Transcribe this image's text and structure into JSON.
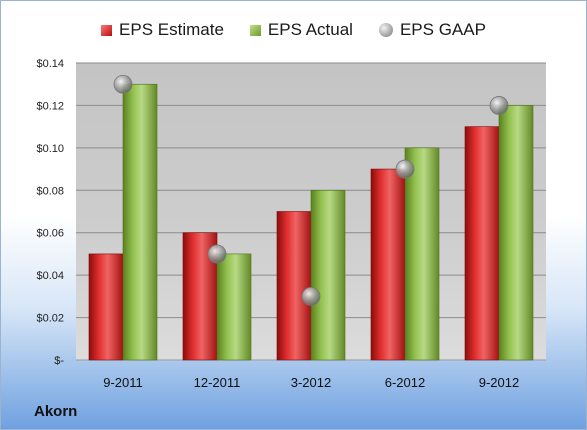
{
  "company": "Akorn",
  "legend": {
    "estimate": "EPS Estimate",
    "actual": "EPS Actual",
    "gaap": "EPS GAAP"
  },
  "colors": {
    "estimate": "#c81e1e",
    "actual": "#8bb44a",
    "gaap": "#a0a0a0",
    "plot_background": "#c8c8c8"
  },
  "chart_data": {
    "type": "bar",
    "categories": [
      "9-2011",
      "12-2011",
      "3-2012",
      "6-2012",
      "9-2012"
    ],
    "series": [
      {
        "name": "EPS Estimate",
        "values": [
          0.05,
          0.06,
          0.07,
          0.09,
          0.11
        ]
      },
      {
        "name": "EPS Actual",
        "values": [
          0.13,
          0.05,
          0.08,
          0.1,
          0.12
        ]
      },
      {
        "name": "EPS GAAP",
        "values": [
          0.13,
          0.05,
          0.03,
          0.09,
          0.12
        ],
        "marker": "circle"
      }
    ],
    "ylim": [
      0,
      0.14
    ],
    "yticks": [
      0,
      0.02,
      0.04,
      0.06,
      0.08,
      0.1,
      0.12,
      0.14
    ],
    "ytick_labels": [
      "$-",
      "$0.02",
      "$0.04",
      "$0.06",
      "$0.08",
      "$0.10",
      "$0.12",
      "$0.14"
    ],
    "grid": true,
    "legend_position": "top"
  }
}
